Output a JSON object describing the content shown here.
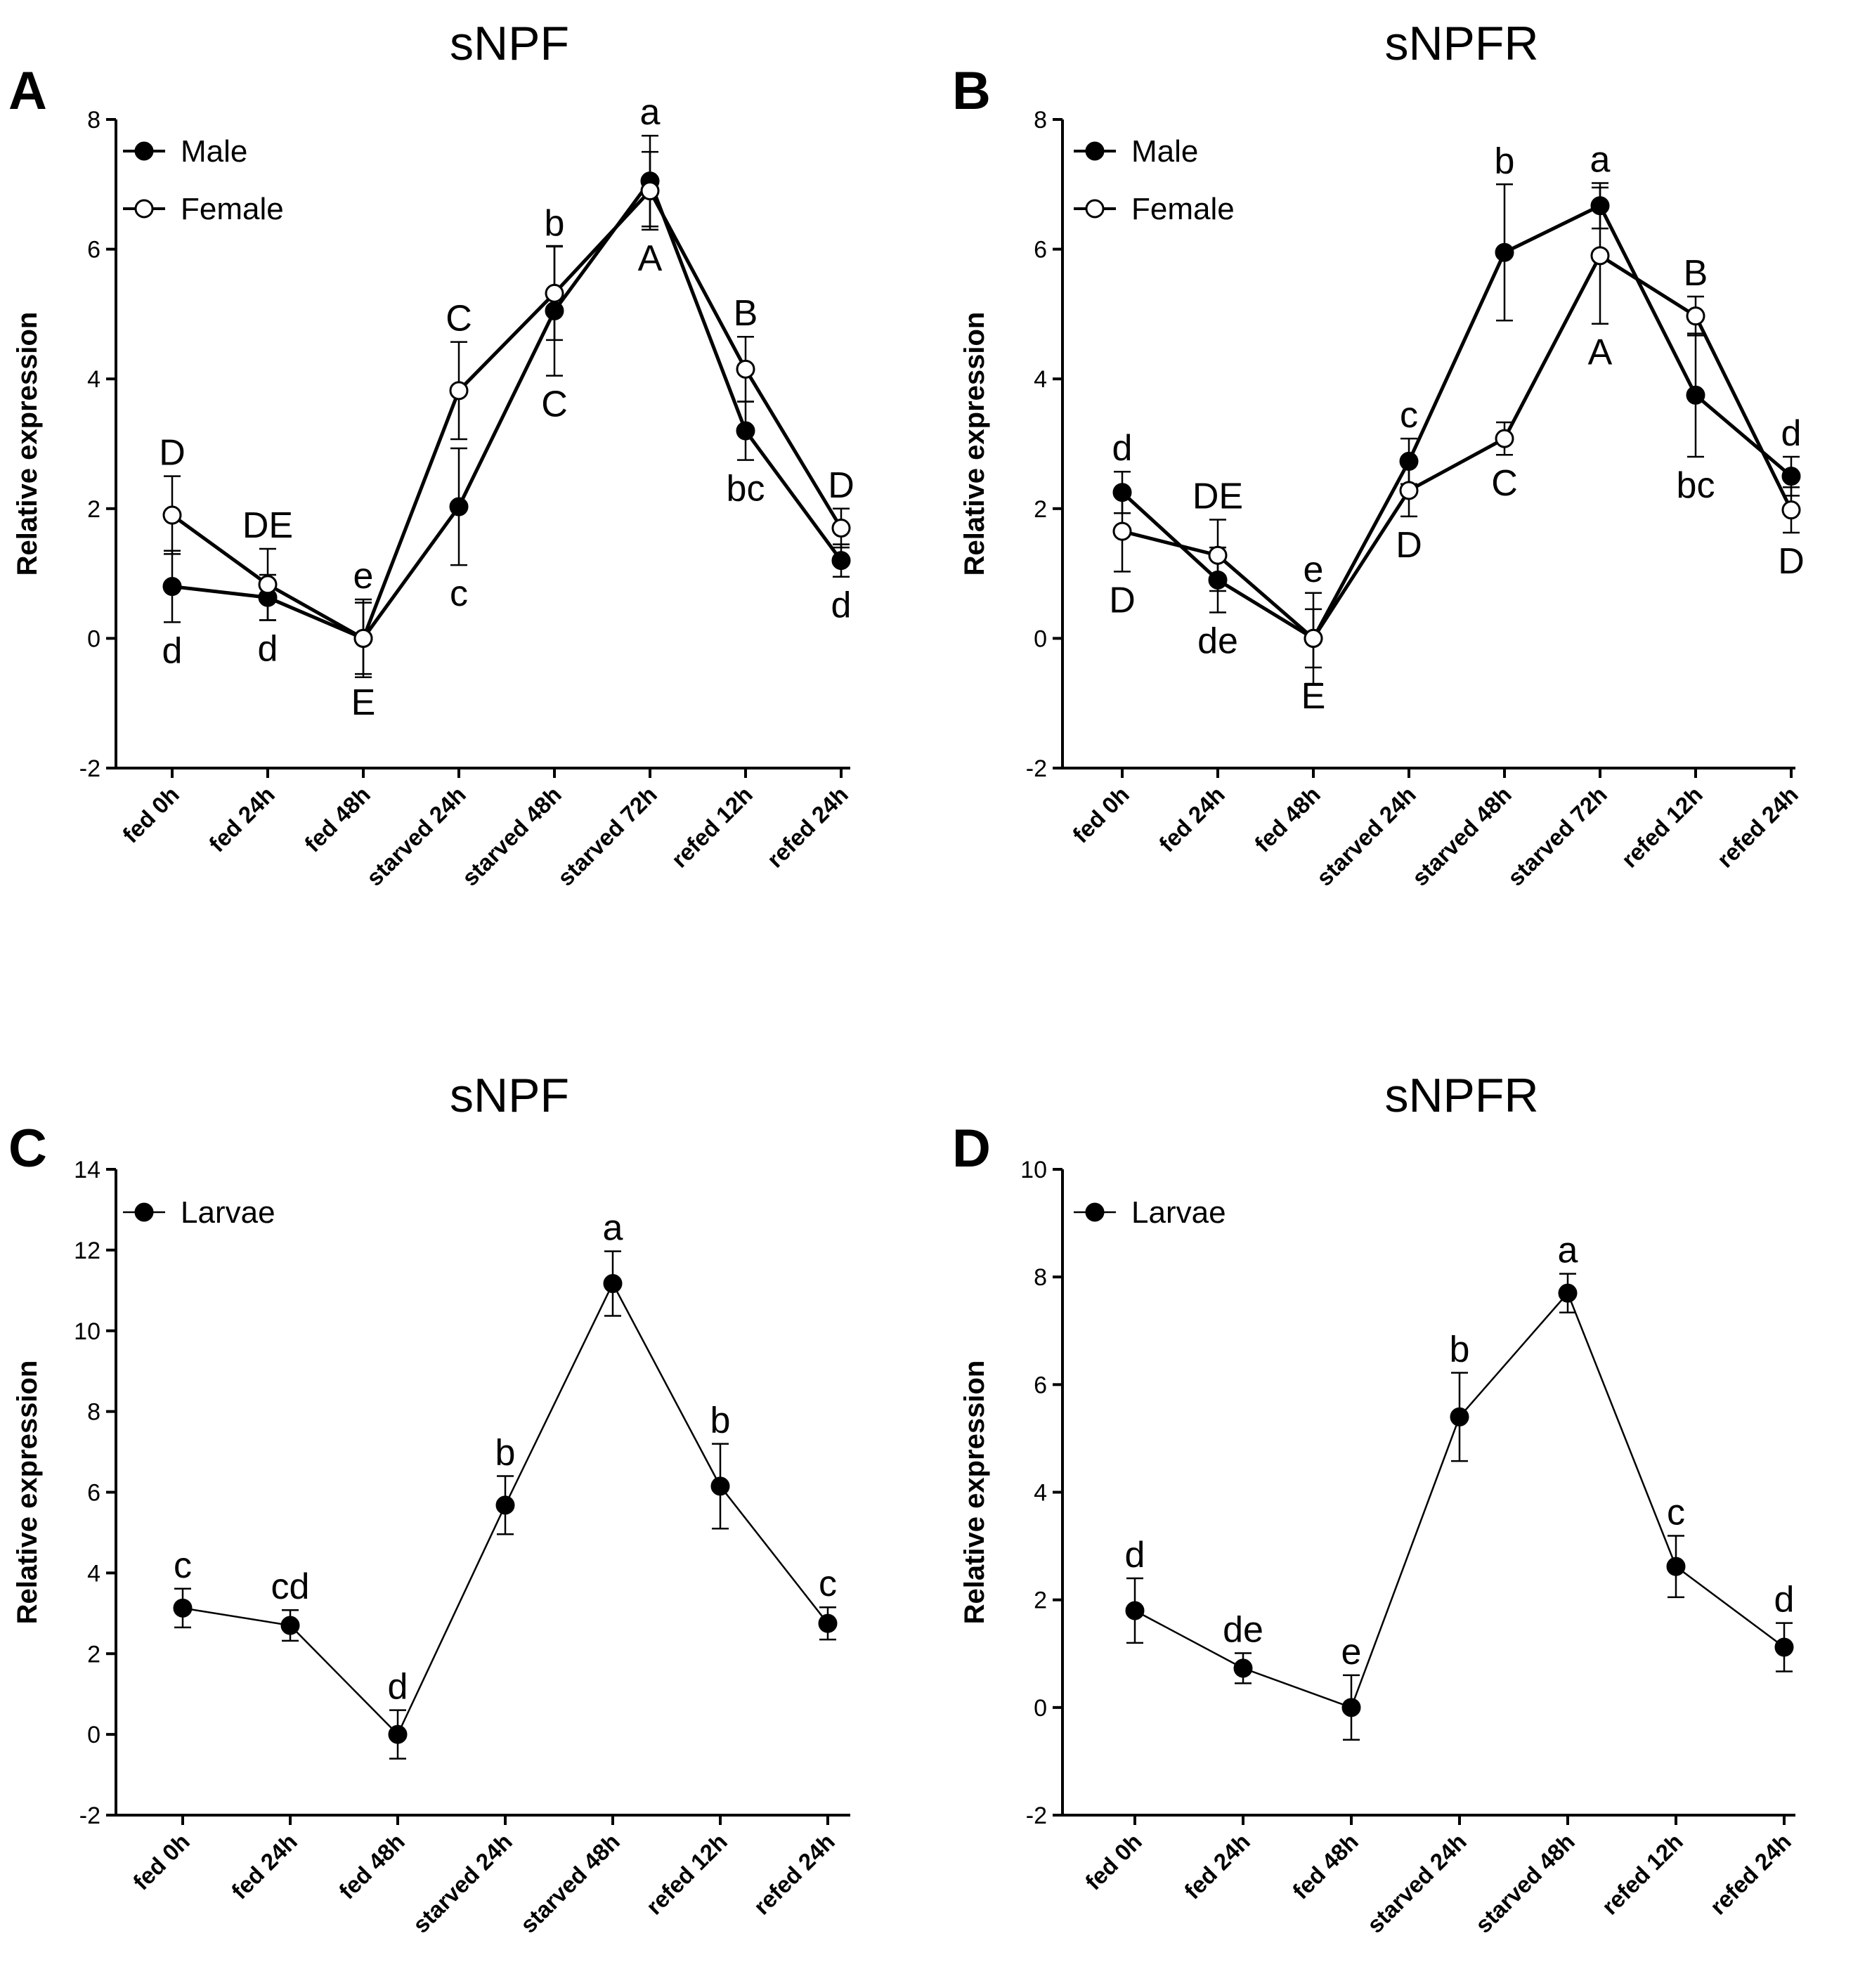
{
  "chart_data": [
    {
      "panel": "A",
      "type": "line",
      "title": "sNPF",
      "ylabel": "Relative expression",
      "xlabel": "",
      "ylim": [
        -2,
        8
      ],
      "yticks": [
        -2,
        0,
        2,
        4,
        6,
        8
      ],
      "categories": [
        "fed 0h",
        "fed 24h",
        "fed 48h",
        "starved 24h",
        "starved 48h",
        "starved 72h",
        "refed 12h",
        "refed 24h"
      ],
      "legend_position": "top-left",
      "series": [
        {
          "name": "Male",
          "marker": "filled",
          "values": [
            0.8,
            0.63,
            0,
            2.03,
            5.05,
            7.05,
            3.2,
            1.2
          ],
          "errors": [
            0.55,
            0.35,
            0.6,
            0.9,
            1.0,
            0.7,
            0.45,
            0.25
          ],
          "letters": [
            "d",
            "d",
            "e",
            "c",
            "C",
            "a",
            "bc",
            "d"
          ],
          "letter_side": [
            "below",
            "below",
            "above",
            "below",
            "below",
            "above",
            "below",
            "below"
          ]
        },
        {
          "name": "Female",
          "marker": "open",
          "values": [
            1.9,
            0.83,
            0,
            3.82,
            5.32,
            6.9,
            4.15,
            1.7
          ],
          "errors": [
            0.6,
            0.55,
            0.55,
            0.75,
            0.72,
            0.6,
            0.5,
            0.3
          ],
          "letters": [
            "D",
            "DE",
            "E",
            "C",
            "b",
            "A",
            "B",
            "D"
          ],
          "letter_side": [
            "above",
            "above",
            "below",
            "above",
            "above",
            "below",
            "above",
            "above"
          ]
        }
      ]
    },
    {
      "panel": "B",
      "type": "line",
      "title": "sNPFR",
      "ylabel": "Relative expression",
      "xlabel": "",
      "ylim": [
        -2,
        8
      ],
      "yticks": [
        -2,
        0,
        2,
        4,
        6,
        8
      ],
      "categories": [
        "fed 0h",
        "fed 24h",
        "fed 48h",
        "starved 24h",
        "starved 48h",
        "starved 72h",
        "refed 12h",
        "refed 24h"
      ],
      "legend_position": "top-left",
      "series": [
        {
          "name": "Male",
          "marker": "filled",
          "values": [
            2.25,
            0.9,
            0,
            2.73,
            5.95,
            6.67,
            3.75,
            2.5
          ],
          "errors": [
            0.32,
            0.5,
            0.7,
            0.35,
            1.05,
            0.35,
            0.95,
            0.3
          ],
          "letters": [
            "d",
            "de",
            "e",
            "c",
            "b",
            "a",
            "bc",
            "d"
          ],
          "letter_side": [
            "above",
            "below",
            "above",
            "above",
            "above",
            "above",
            "below",
            "above"
          ]
        },
        {
          "name": "Female",
          "marker": "open",
          "values": [
            1.65,
            1.28,
            0,
            2.28,
            3.08,
            5.9,
            4.97,
            1.98
          ],
          "errors": [
            0.62,
            0.55,
            0.45,
            0.4,
            0.25,
            1.05,
            0.3,
            0.35
          ],
          "letters": [
            "D",
            "DE",
            "E",
            "D",
            "C",
            "A",
            "B",
            "D"
          ],
          "letter_side": [
            "below",
            "above",
            "below",
            "below",
            "below",
            "below",
            "above",
            "below"
          ]
        }
      ]
    },
    {
      "panel": "C",
      "type": "line",
      "title": "sNPF",
      "ylabel": "Relative expression",
      "xlabel": "",
      "ylim": [
        -2,
        14
      ],
      "yticks": [
        -2,
        0,
        2,
        4,
        6,
        8,
        10,
        12,
        14
      ],
      "categories": [
        "fed 0h",
        "fed 24h",
        "fed 48h",
        "starved 24h",
        "starved 48h",
        "refed 12h",
        "refed 24h"
      ],
      "legend_position": "top-left",
      "series": [
        {
          "name": "Larvae",
          "marker": "filled",
          "values": [
            3.13,
            2.7,
            0,
            5.68,
            11.17,
            6.15,
            2.75
          ],
          "errors": [
            0.48,
            0.38,
            0.6,
            0.72,
            0.8,
            1.05,
            0.4
          ],
          "letters": [
            "c",
            "cd",
            "d",
            "b",
            "a",
            "b",
            "c"
          ],
          "letter_side": [
            "above",
            "above",
            "above",
            "above",
            "above",
            "above",
            "above"
          ]
        }
      ]
    },
    {
      "panel": "D",
      "type": "line",
      "title": "sNPFR",
      "ylabel": "Relative expression",
      "xlabel": "",
      "ylim": [
        -2,
        10
      ],
      "yticks": [
        -2,
        0,
        2,
        4,
        6,
        8,
        10
      ],
      "categories": [
        "fed 0h",
        "fed 24h",
        "fed 48h",
        "starved 24h",
        "starved 48h",
        "refed 12h",
        "refed 24h"
      ],
      "legend_position": "top-left",
      "series": [
        {
          "name": "Larvae",
          "marker": "filled",
          "values": [
            1.8,
            0.73,
            0,
            5.4,
            7.7,
            2.62,
            1.12
          ],
          "errors": [
            0.6,
            0.28,
            0.6,
            0.82,
            0.36,
            0.57,
            0.45
          ],
          "letters": [
            "d",
            "de",
            "e",
            "b",
            "a",
            "c",
            "d"
          ],
          "letter_side": [
            "above",
            "above",
            "above",
            "above",
            "above",
            "above",
            "above"
          ]
        }
      ]
    }
  ]
}
